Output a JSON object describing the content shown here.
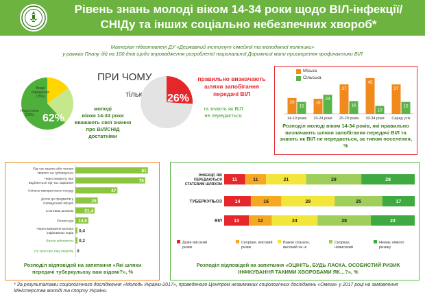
{
  "header": {
    "title": "Рівень знань молоді віком 14-34 роки щодо ВІЛ-інфекції/СНІДу та інших соціально небезпечних хвороб*",
    "logo": "institute-emblem"
  },
  "intro": {
    "line1": "Матеріал підготовлені ДУ «Державний інститут сімейної та молодіжної політики»",
    "line2": "у рамках Плану дій на 100 днів щодо впровадження розробленої національної Дорожньої мапи прискорення профілактики ВІЛ"
  },
  "pie1": {
    "center_value": "62%",
    "slices": [
      {
        "label": "Вище середнього (15%)",
        "value": 15,
        "color": "#ffd600"
      },
      {
        "label": "Недостатнє (23%)",
        "value": 23,
        "color": "#c5e88c"
      },
      {
        "label": "62%",
        "value": 62,
        "color": "#4eb03a"
      }
    ],
    "caption": [
      "молоді",
      "віком 14-34 роки",
      "вважають свої знання",
      "про ВІЛ/СНІД",
      "достатніми"
    ]
  },
  "pie2": {
    "headline_1": "ПРИ ЧОМУ",
    "headline_2": "тільки",
    "center_value": "26%",
    "value": 26,
    "colors": {
      "slice": "#e5262b",
      "rest": "#e3e3e3"
    },
    "caption_red": [
      "правильно визначають",
      "шляхи запобігання",
      "передачі ВІЛ"
    ],
    "caption_green": [
      "та знають як ВІЛ",
      "не передається"
    ]
  },
  "chart_data": [
    {
      "type": "bar",
      "id": "age-gender",
      "legend": [
        "Міська",
        "Сільська"
      ],
      "categories": [
        "14-19 років",
        "20-24 роки",
        "25-29 років",
        "30-34 роки",
        "Серед усіх"
      ],
      "series": [
        {
          "name": "Міська",
          "color": "#f08a1c",
          "values": [
            20,
            19,
            37,
            45,
            37
          ]
        },
        {
          "name": "Сільська",
          "color": "#5ab548",
          "values": [
            15,
            24,
            16,
            10,
            15
          ]
        }
      ],
      "title": "Розподіл молоді віком 14-34 років, які правильно визначають шляхи запобігання передачі ВІЛ та знають як ВІЛ не передається, за типом поселення, %",
      "ylim": [
        0,
        50
      ]
    },
    {
      "type": "bar",
      "id": "tb-ways",
      "orientation": "horizontal",
      "categories": [
        "Під час кашлю або чхання хворого на туберкульоз",
        "Через мокроту, яка виділяється під час харкання",
        "Спільне використання посуду",
        "Дотик до предметів у громадських місцях",
        "Статевим шляхом",
        "Потиск рук",
        "Через вживання молока інфікованих корів",
        "Важко відповісти",
        "Не чули про таку хворобу"
      ],
      "values": [
        81,
        78,
        47,
        25,
        21.4,
        14.5,
        0.4,
        0.2,
        0
      ],
      "value_labels": [
        "81",
        "78",
        "47",
        "25",
        "21,4",
        "14,5",
        "0,4",
        "0,2",
        "0"
      ],
      "colors": {
        "bar": "#8cc63f",
        "green_text": "#3a9d23"
      },
      "title": "Розподіл відповідей на запитання «Які шляхи передачі туберкульозу вам відомі?», %",
      "xlim": [
        0,
        85
      ]
    },
    {
      "type": "bar",
      "id": "risk-assessment",
      "orientation": "horizontal",
      "stacked": true,
      "categories": [
        "ІНФЕКЦІЇ, ЯКІ ПЕРЕДАЮТЬСЯ СТАТЕВИМ ШЛЯХОМ",
        "ТУБЕРКУЛЬОЗ",
        "ВІЛ"
      ],
      "series": [
        {
          "name": "Дуже високий ризик",
          "color": "#e5262b",
          "values": [
            11,
            14,
            13
          ]
        },
        {
          "name": "Скоріше, високий ризик",
          "color": "#f7a823",
          "values": [
            11,
            16,
            12
          ]
        },
        {
          "name": "Важко сказати, високий чи ні",
          "color": "#f3e63b",
          "values": [
            21,
            28,
            24
          ]
        },
        {
          "name": "Скоріше, невисокий",
          "color": "#9fcf5a",
          "values": [
            29,
            25,
            28
          ]
        },
        {
          "name": "Немає ніякого ризику",
          "color": "#3fa942",
          "values": [
            28,
            17,
            23
          ]
        }
      ],
      "title": "Розподіл відповідей на запитання «ОЦІНІТЬ, БУДЬ ЛАСКА, ОСОБИСТИЙ РИЗИК ІНФІКУВАННЯ ТАКИМИ ХВОРОБАМИ ЯК…?», %",
      "xlim": [
        0,
        100
      ]
    }
  ],
  "footnote": "* За результатами соціологічного дослідження «Молодь України-2017», проведеного Центром незалежних соціологічних досліджень «Омега» у 2017 році на замовлення Міністерства молоді та спорту України."
}
